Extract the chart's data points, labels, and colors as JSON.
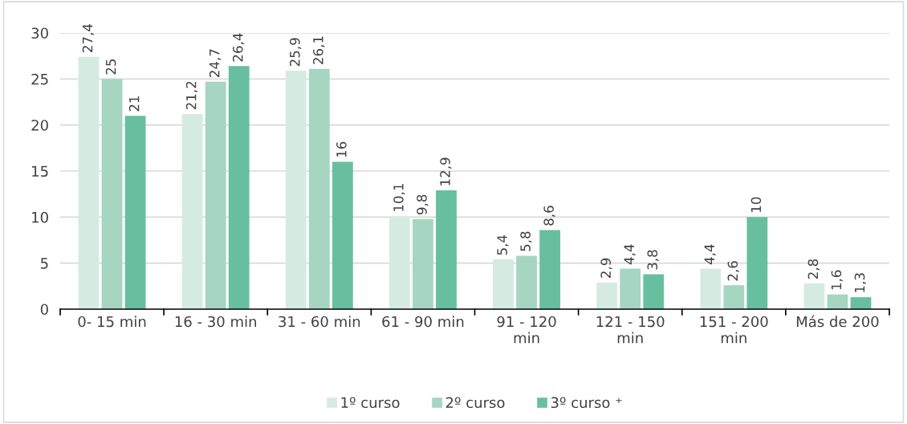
{
  "chart_data": {
    "type": "bar",
    "categories": [
      "0- 15 min",
      "16 - 30 min",
      "31 - 60 min",
      "61 - 90 min",
      "91 - 120\nmin",
      "121 - 150\nmin",
      "151 - 200\nmin",
      "Más de 200"
    ],
    "series": [
      {
        "name": "1º curso",
        "color": "#d5ebe1",
        "values": [
          27.4,
          21.2,
          25.9,
          10.1,
          5.4,
          2.9,
          4.4,
          2.8
        ],
        "value_labels": [
          "27,4",
          "21,2",
          "25,9",
          "10,1",
          "5,4",
          "2,9",
          "4,4",
          "2,8"
        ]
      },
      {
        "name": "2º curso",
        "color": "#a6d5c2",
        "values": [
          25,
          24.7,
          26.1,
          9.8,
          5.8,
          4.4,
          2.6,
          1.6
        ],
        "value_labels": [
          "25",
          "24,7",
          "26,1",
          "9,8",
          "5,8",
          "4,4",
          "2,6",
          "1,6"
        ]
      },
      {
        "name": "3º curso ⁺",
        "color": "#68bf9f",
        "values": [
          21,
          26.4,
          16,
          12.9,
          8.6,
          3.8,
          10,
          1.3
        ],
        "value_labels": [
          "21",
          "26,4",
          "16",
          "12,9",
          "8,6",
          "3,8",
          "10",
          "1,3"
        ]
      }
    ],
    "ylim": [
      0,
      30
    ],
    "yticks": [
      0,
      5,
      10,
      15,
      20,
      25,
      30
    ],
    "grid": "y",
    "legend": "bottom"
  }
}
